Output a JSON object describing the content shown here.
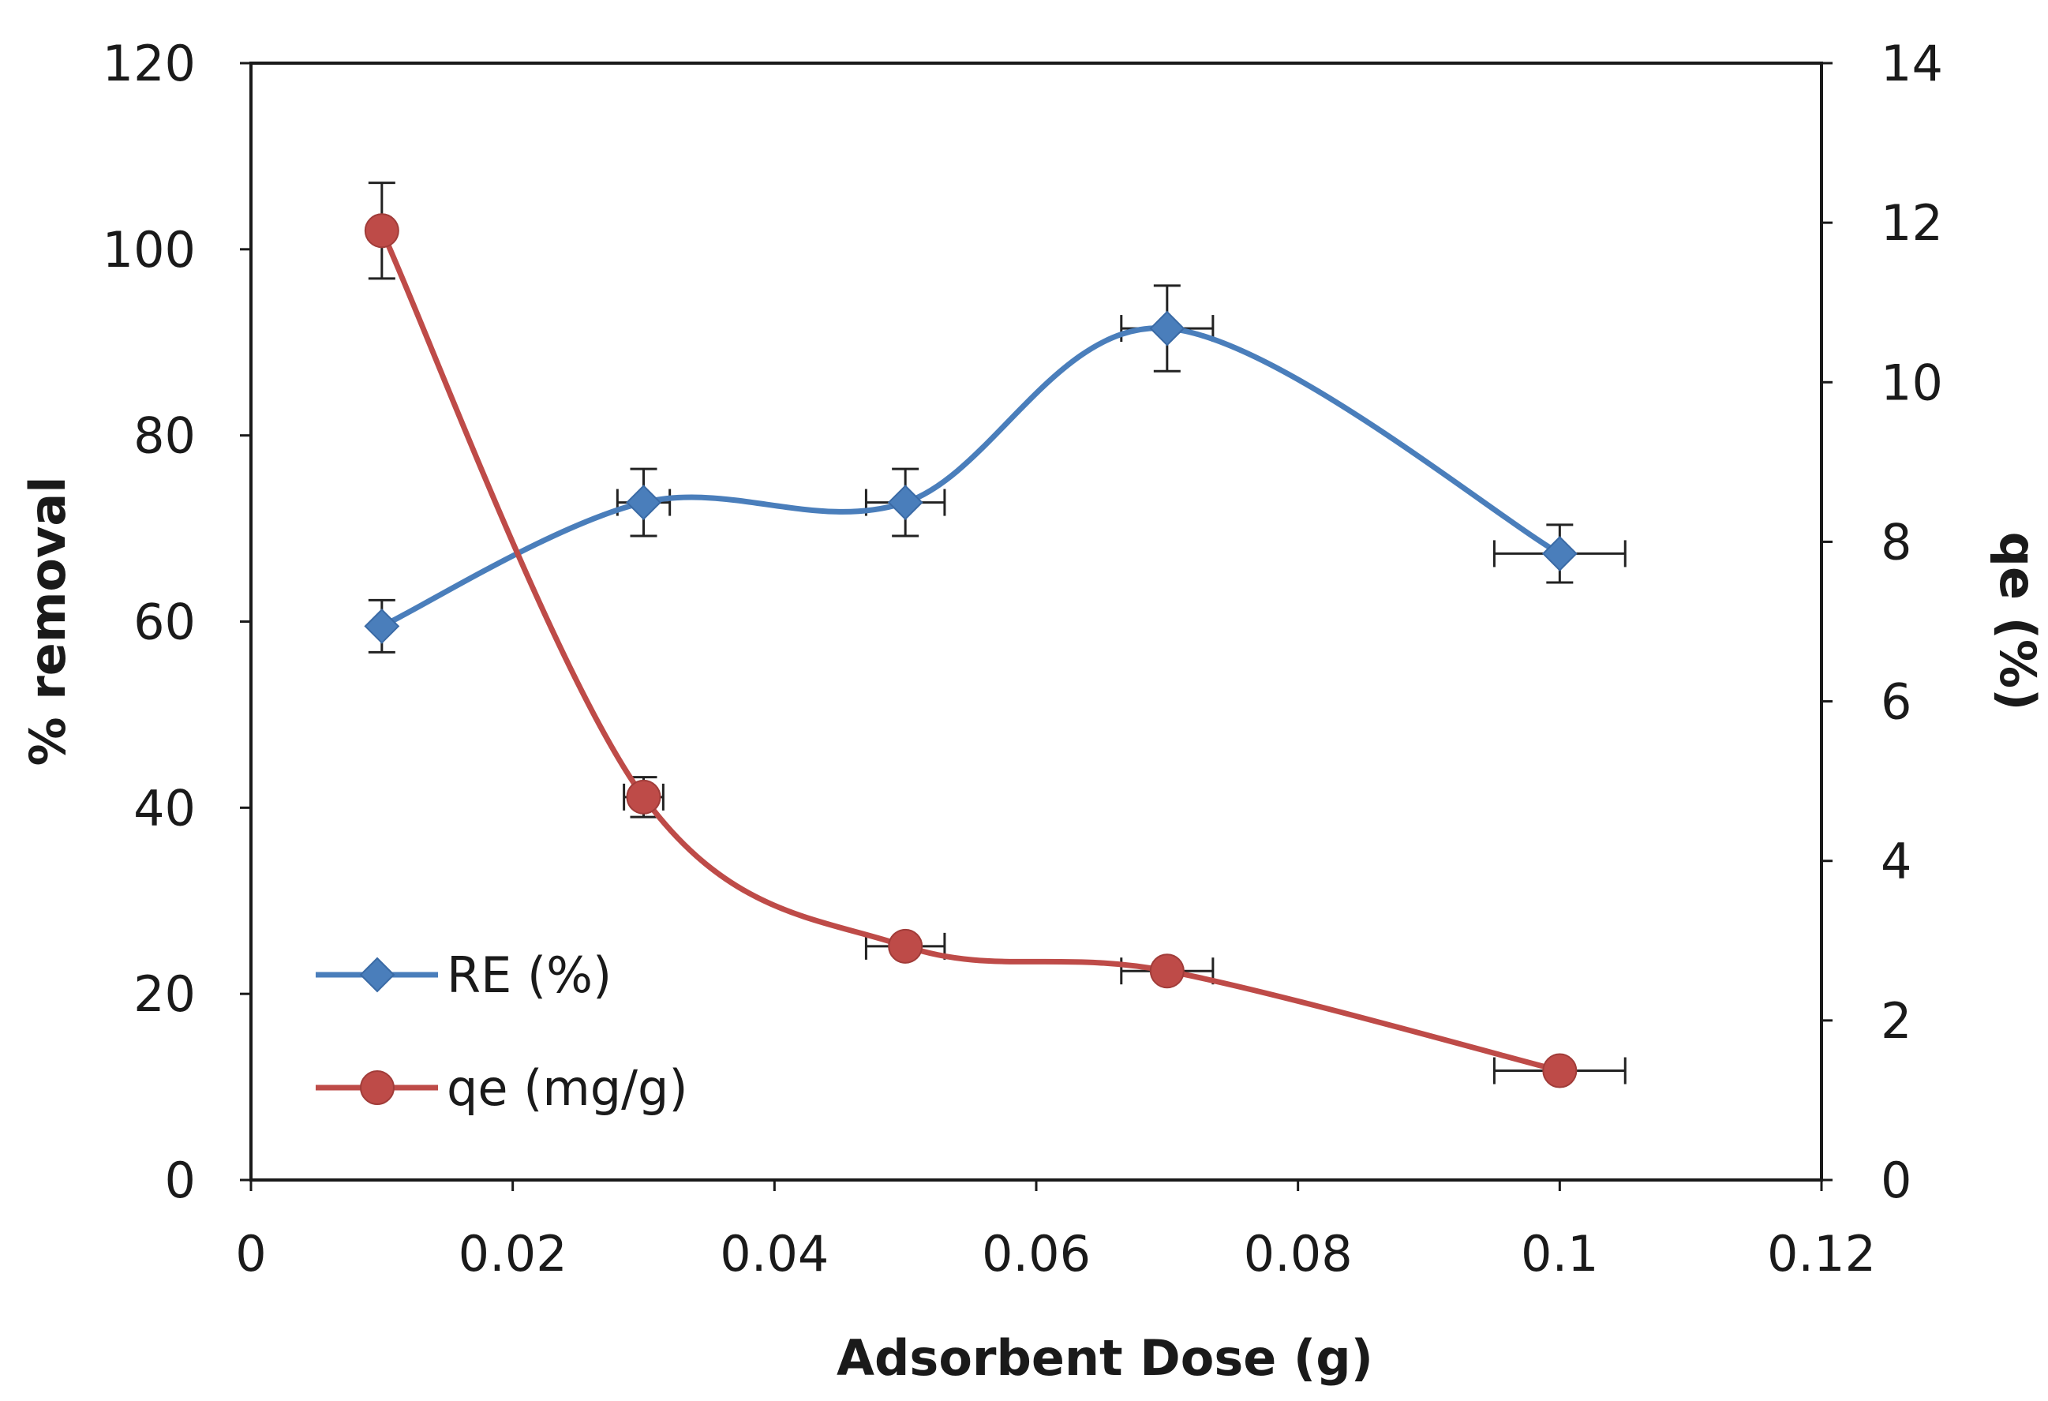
{
  "chart_data": {
    "type": "line",
    "title": "",
    "xlabel": "Adsorbent Dose (g)",
    "ylabel": "% removal",
    "y2label": "qe (%)",
    "xlim": [
      0,
      0.12
    ],
    "ylim": [
      0,
      120
    ],
    "y2lim": [
      0,
      14
    ],
    "x_ticks": [
      "0",
      "0.02",
      "0.04",
      "0.06",
      "0.08",
      "0.1",
      "0.12"
    ],
    "y_ticks": [
      "0",
      "20",
      "40",
      "60",
      "80",
      "100",
      "120"
    ],
    "y2_ticks": [
      "0",
      "2",
      "4",
      "6",
      "8",
      "10",
      "12",
      "14"
    ],
    "grid": false,
    "legend_position": "bottom-left",
    "series": [
      {
        "name": "RE (%)",
        "axis": "left",
        "marker": "diamond",
        "color": "#4a7ebb",
        "x": [
          0.01,
          0.03,
          0.05,
          0.07,
          0.1
        ],
        "y": [
          59.5,
          72.8,
          72.8,
          91.5,
          67.3
        ],
        "y_err": [
          2.8,
          3.6,
          3.6,
          4.6,
          3.1
        ],
        "x_err": [
          0,
          0.002,
          0.003,
          0.0035,
          0.005
        ]
      },
      {
        "name": "qe (mg/g)",
        "axis": "right",
        "marker": "circle",
        "color": "#be4b48",
        "x": [
          0.01,
          0.03,
          0.05,
          0.07,
          0.1
        ],
        "y": [
          11.9,
          4.8,
          2.93,
          2.62,
          1.37
        ],
        "y_err": [
          0.6,
          0.25,
          0.1,
          0.1,
          0.1
        ],
        "x_err": [
          0,
          0.0015,
          0.003,
          0.0035,
          0.005
        ]
      }
    ]
  }
}
